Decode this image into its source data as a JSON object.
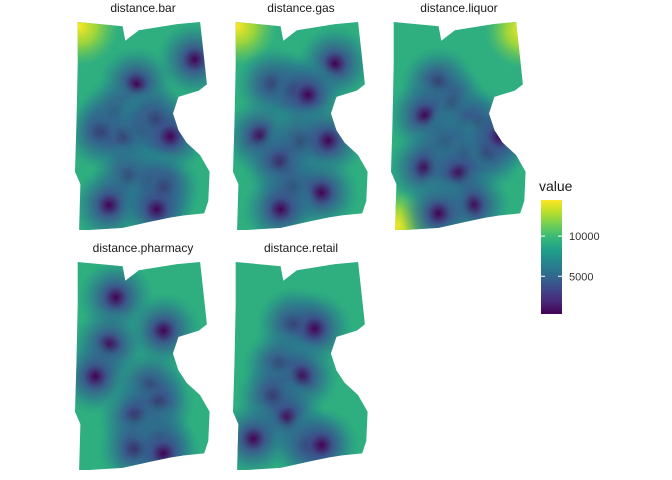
{
  "chart_data": {
    "type": "heatmap",
    "facets": [
      {
        "name": "distance.bar",
        "hotspots": [
          [
            0.45,
            0.3
          ],
          [
            0.3,
            0.45
          ],
          [
            0.2,
            0.53
          ],
          [
            0.37,
            0.55
          ],
          [
            0.52,
            0.52
          ],
          [
            0.6,
            0.47
          ],
          [
            0.7,
            0.55
          ],
          [
            0.4,
            0.75
          ],
          [
            0.55,
            0.78
          ],
          [
            0.65,
            0.8
          ],
          [
            0.25,
            0.88
          ],
          [
            0.6,
            0.9
          ],
          [
            0.88,
            0.18
          ]
        ]
      },
      {
        "name": "distance.gas",
        "hotspots": [
          [
            0.75,
            0.2
          ],
          [
            0.3,
            0.3
          ],
          [
            0.45,
            0.33
          ],
          [
            0.55,
            0.35
          ],
          [
            0.2,
            0.55
          ],
          [
            0.5,
            0.58
          ],
          [
            0.7,
            0.57
          ],
          [
            0.35,
            0.68
          ],
          [
            0.45,
            0.8
          ],
          [
            0.65,
            0.82
          ],
          [
            0.35,
            0.9
          ]
        ]
      },
      {
        "name": "distance.liquor",
        "hotspots": [
          [
            0.35,
            0.3
          ],
          [
            0.45,
            0.4
          ],
          [
            0.25,
            0.45
          ],
          [
            0.55,
            0.5
          ],
          [
            0.65,
            0.5
          ],
          [
            0.4,
            0.6
          ],
          [
            0.55,
            0.63
          ],
          [
            0.7,
            0.63
          ],
          [
            0.25,
            0.7
          ],
          [
            0.5,
            0.73
          ],
          [
            0.8,
            0.55
          ],
          [
            0.6,
            0.88
          ],
          [
            0.35,
            0.92
          ]
        ]
      },
      {
        "name": "distance.pharmacy",
        "hotspots": [
          [
            0.3,
            0.17
          ],
          [
            0.65,
            0.33
          ],
          [
            0.25,
            0.4
          ],
          [
            0.15,
            0.55
          ],
          [
            0.55,
            0.6
          ],
          [
            0.6,
            0.68
          ],
          [
            0.45,
            0.75
          ],
          [
            0.6,
            0.85
          ],
          [
            0.45,
            0.9
          ],
          [
            0.65,
            0.92
          ]
        ]
      },
      {
        "name": "distance.retail",
        "hotspots": [
          [
            0.45,
            0.3
          ],
          [
            0.6,
            0.32
          ],
          [
            0.35,
            0.5
          ],
          [
            0.5,
            0.55
          ],
          [
            0.3,
            0.65
          ],
          [
            0.4,
            0.75
          ],
          [
            0.15,
            0.85
          ],
          [
            0.55,
            0.88
          ],
          [
            0.65,
            0.88
          ]
        ]
      }
    ],
    "legend": {
      "title": "value",
      "ticks": [
        5000,
        10000
      ],
      "range": [
        300,
        14500
      ],
      "palette": "viridis",
      "placement": "right"
    },
    "colors": {
      "low": "#440154",
      "mid": "#21918c",
      "high": "#fde725"
    }
  }
}
